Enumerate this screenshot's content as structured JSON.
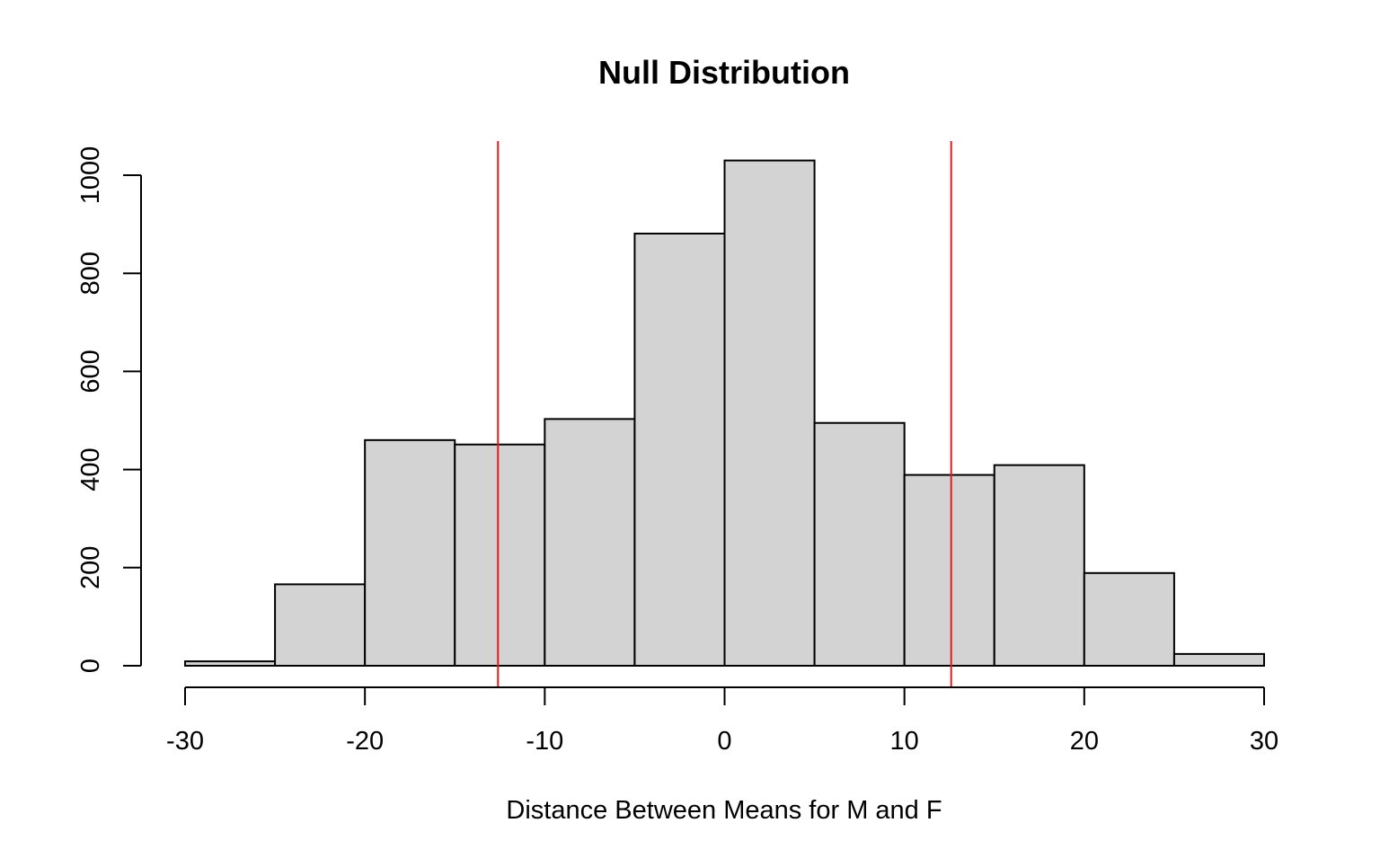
{
  "chart_data": {
    "type": "histogram",
    "title": "Null Distribution",
    "xlabel": "Distance Between Means for M and F",
    "ylabel": "",
    "bin_edges": [
      -30,
      -25,
      -20,
      -15,
      -10,
      -5,
      0,
      5,
      10,
      15,
      20,
      25,
      30
    ],
    "counts": [
      9,
      166,
      460,
      451,
      503,
      881,
      1030,
      495,
      389,
      409,
      189,
      24
    ],
    "xlim": [
      -30,
      30
    ],
    "ylim": [
      0,
      1000
    ],
    "x_ticks": [
      -30,
      -20,
      -10,
      0,
      10,
      20,
      30
    ],
    "x_tick_labels": [
      "-30",
      "-20",
      "-10",
      "0",
      "10",
      "20",
      "30"
    ],
    "y_ticks": [
      0,
      200,
      400,
      600,
      800,
      1000
    ],
    "y_tick_labels": [
      "0",
      "200",
      "400",
      "600",
      "800",
      "1000"
    ],
    "reference_lines": [
      {
        "x": -12.6,
        "color": "#e41a1c"
      },
      {
        "x": 12.6,
        "color": "#e41a1c"
      }
    ],
    "bar_fill": "#d3d3d3",
    "bar_stroke": "#000000",
    "grid": false,
    "legend": "none"
  }
}
